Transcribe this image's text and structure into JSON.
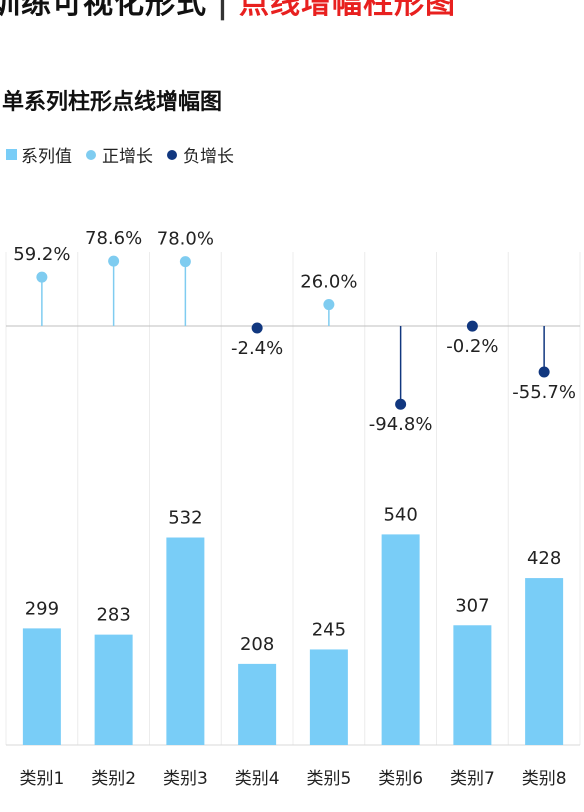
{
  "banner": {
    "left_text": "训练可视化形式",
    "separator": "|",
    "highlight_text": "点线增幅柱形图"
  },
  "colors": {
    "bar": "#79cdf7",
    "positive": "#7fccf0",
    "negative": "#11377f",
    "highlight": "#e8201f"
  },
  "chart_data": {
    "type": "bar",
    "title": "单系列柱形点线增幅图",
    "legend": [
      {
        "label": "系列值",
        "shape": "square",
        "color": "#79cdf7"
      },
      {
        "label": "正增长",
        "shape": "dot",
        "color": "#7fccf0"
      },
      {
        "label": "负增长",
        "shape": "dot",
        "color": "#11377f"
      }
    ],
    "legend_position": "top-left",
    "categories": [
      "类别1",
      "类别2",
      "类别3",
      "类别4",
      "类别5",
      "类别6",
      "类别7",
      "类别8"
    ],
    "series": [
      {
        "name": "系列值",
        "values": [
          299,
          283,
          532,
          208,
          245,
          540,
          307,
          428
        ]
      }
    ],
    "growth": {
      "values": [
        59.2,
        78.6,
        78.0,
        -2.4,
        26.0,
        -94.8,
        -0.2,
        -55.7
      ],
      "labels": [
        "59.2%",
        "78.6%",
        "78.0%",
        "-2.4%",
        "26.0%",
        "-94.8%",
        "-0.2%",
        "-55.7%"
      ]
    },
    "grid": "vertical"
  }
}
